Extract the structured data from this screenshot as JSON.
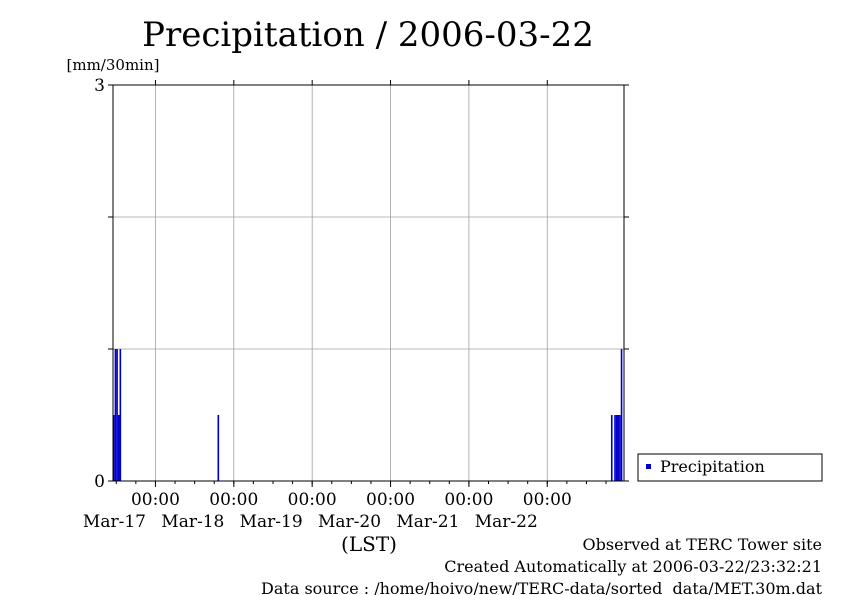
{
  "chart_data": {
    "type": "bar",
    "title": "Precipitation / 2006-03-22",
    "ylabel": "[mm/30min]",
    "xlabel": "(LST)",
    "ylim": [
      0,
      3
    ],
    "y_ticks": [
      0,
      3
    ],
    "y_grid": [
      0,
      1,
      2,
      3
    ],
    "grid": true,
    "interval_hours": 0.5,
    "x_range": [
      "2006-03-16 11:00",
      "2006-03-22 23:30"
    ],
    "x_ticks": [
      {
        "time": "2006-03-17 00:00",
        "label": "00:00",
        "date_label": "Mar-17"
      },
      {
        "time": "2006-03-18 00:00",
        "label": "00:00",
        "date_label": "Mar-18"
      },
      {
        "time": "2006-03-19 00:00",
        "label": "00:00",
        "date_label": "Mar-19"
      },
      {
        "time": "2006-03-20 00:00",
        "label": "00:00",
        "date_label": "Mar-20"
      },
      {
        "time": "2006-03-21 00:00",
        "label": "00:00",
        "date_label": "Mar-21"
      },
      {
        "time": "2006-03-22 00:00",
        "label": "00:00",
        "date_label": "Mar-22"
      }
    ],
    "series": [
      {
        "name": "Precipitation",
        "color": "#0000cc",
        "points": [
          {
            "time": "2006-03-16 11:30",
            "value": 0.5
          },
          {
            "time": "2006-03-16 12:00",
            "value": 1.0
          },
          {
            "time": "2006-03-16 12:30",
            "value": 1.0
          },
          {
            "time": "2006-03-16 13:00",
            "value": 0.5
          },
          {
            "time": "2006-03-16 13:30",
            "value": 1.0
          },
          {
            "time": "2006-03-17 19:30",
            "value": 0.5
          },
          {
            "time": "2006-03-22 20:00",
            "value": 0.5
          },
          {
            "time": "2006-03-22 21:00",
            "value": 0.5
          },
          {
            "time": "2006-03-22 21:30",
            "value": 0.5
          },
          {
            "time": "2006-03-22 22:00",
            "value": 0.5
          },
          {
            "time": "2006-03-22 22:30",
            "value": 0.5
          },
          {
            "time": "2006-03-22 23:00",
            "value": 1.0
          }
        ]
      }
    ],
    "legend": {
      "position": "right",
      "label": "Precipitation"
    }
  },
  "footer": {
    "observed": "Observed at TERC Tower site",
    "created": "Created Automatically at 2006-03-22/23:32:21",
    "source": "Data source : /home/hoivo/new/TERC-data/sorted  data/MET.30m.dat"
  }
}
